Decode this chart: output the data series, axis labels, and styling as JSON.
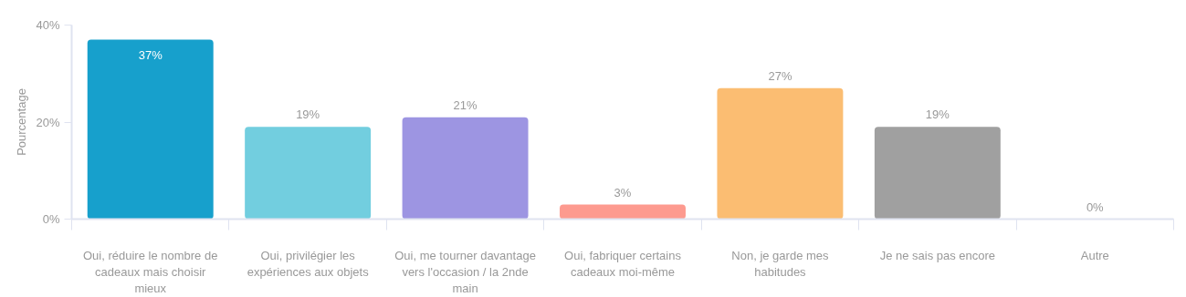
{
  "chart_data": {
    "type": "bar",
    "categories": [
      "Oui, réduire le nombre de cadeaux mais choisir mieux",
      "Oui, privilégier les expériences aux objets",
      "Oui, me tourner davantage vers l'occasion / la 2nde main",
      "Oui, fabriquer certains cadeaux moi-même",
      "Non, je garde mes habitudes",
      "Je ne sais pas encore",
      "Autre"
    ],
    "values": [
      37,
      19,
      21,
      3,
      27,
      19,
      0
    ],
    "value_labels": [
      "37%",
      "19%",
      "21%",
      "3%",
      "27%",
      "19%",
      "0%"
    ],
    "colors": [
      "#17a0cc",
      "#72cedf",
      "#9d95e2",
      "#fd9a8f",
      "#fbbd72",
      "#a0a0a0",
      "#d9d9d9"
    ],
    "ylabel": "Pourcentage",
    "ylim": [
      0,
      40
    ],
    "yticks": [
      {
        "value": 0,
        "label": "0%"
      },
      {
        "value": 20,
        "label": "20%"
      },
      {
        "value": 40,
        "label": "40%"
      }
    ],
    "grid": false
  }
}
